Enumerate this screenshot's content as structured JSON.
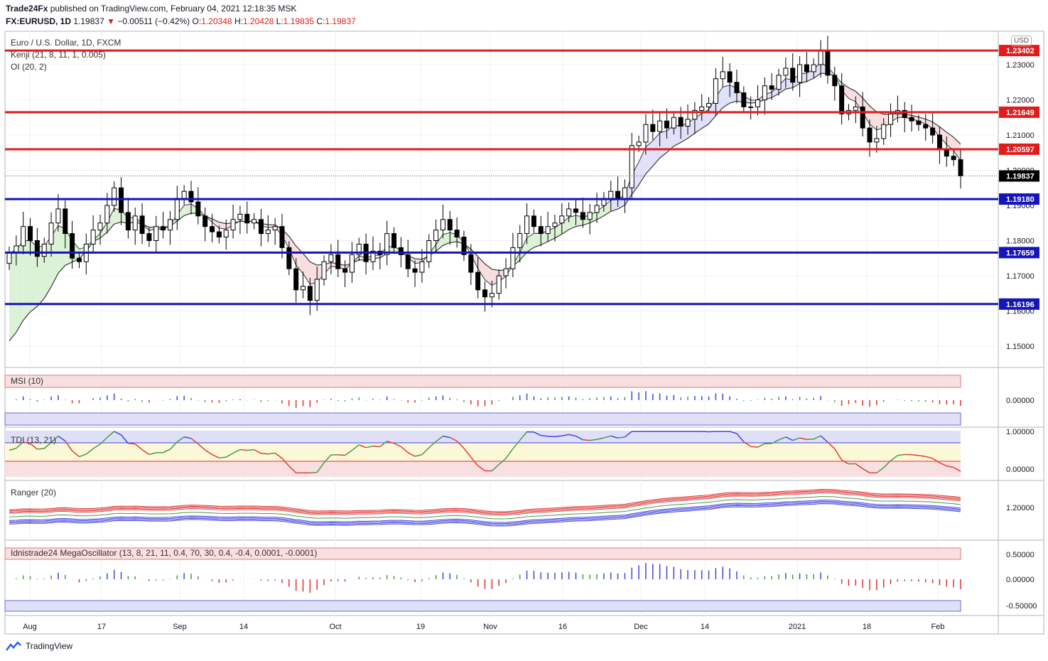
{
  "header": {
    "publisher": "Trade24Fx",
    "published_text": "published on TradingView.com, February 04, 2021 12:18:35 MSK",
    "symbol": "FX:EURUSD, 1D",
    "last": "1.19837",
    "change": "−0.00511 (−0.42%)",
    "o_label": "O:",
    "o": "1.20348",
    "h_label": "H:",
    "h": "1.20428",
    "l_label": "L:",
    "l": "1.19835",
    "c_label": "C:",
    "c": "1.19837"
  },
  "legend": {
    "title": "Euro / U.S. Dollar, 1D, FXCM",
    "kenji": "Kenji (21, 8, 11, 1, 0.005)",
    "oi": "OI (20, 2)"
  },
  "indicators": {
    "msi": "MSI (10)",
    "tdi": "TDI (13, 21)",
    "ranger": "Ranger (20)",
    "mega": "Idnistrade24 MegaOscillator (13, 8, 21, 11, 0.4, 70, 30, 0.4, -0.4, 0.0001, -0.0001)"
  },
  "currency": "USD",
  "footer": {
    "brand": "TradingView"
  },
  "colors": {
    "up": "#ffffff",
    "down": "#000000",
    "resistance": "#e31b1b",
    "support": "#1515b8",
    "accent_red": "#e31b1b",
    "accent_blue": "#2e2ef0"
  },
  "chart_data": [
    {
      "type": "candlestick",
      "title": "Euro / U.S. Dollar, 1D, FXCM",
      "ylim": [
        1.145,
        1.2375
      ],
      "price_ticks": [
        "1.23000",
        "1.22000",
        "1.21000",
        "1.20000",
        "1.19000",
        "1.18000",
        "1.17000",
        "1.16000",
        "1.15000"
      ],
      "x_ticks": [
        "Aug",
        "17",
        "Sep",
        "14",
        "Oct",
        "19",
        "Nov",
        "16",
        "Dec",
        "14",
        "2021",
        "18",
        "Feb"
      ],
      "levels": [
        {
          "value": 1.23402,
          "label": "1.23402",
          "kind": "resistance"
        },
        {
          "value": 1.21649,
          "label": "1.21649",
          "kind": "resistance"
        },
        {
          "value": 1.20597,
          "label": "1.20597",
          "kind": "resistance"
        },
        {
          "value": 1.19837,
          "label": "1.19837",
          "kind": "last"
        },
        {
          "value": 1.1918,
          "label": "1.19180",
          "kind": "support"
        },
        {
          "value": 1.17659,
          "label": "1.17659",
          "kind": "support"
        },
        {
          "value": 1.16196,
          "label": "1.16196",
          "kind": "support"
        }
      ],
      "close": [
        1.1765,
        1.1785,
        1.184,
        1.18,
        1.1755,
        1.179,
        1.185,
        1.189,
        1.182,
        1.175,
        1.174,
        1.179,
        1.183,
        1.185,
        1.19,
        1.195,
        1.188,
        1.183,
        1.187,
        1.182,
        1.18,
        1.184,
        1.183,
        1.186,
        1.192,
        1.194,
        1.191,
        1.187,
        1.184,
        1.1825,
        1.181,
        1.183,
        1.186,
        1.1875,
        1.185,
        1.186,
        1.182,
        1.183,
        1.184,
        1.178,
        1.172,
        1.166,
        1.167,
        1.163,
        1.169,
        1.174,
        1.176,
        1.172,
        1.171,
        1.176,
        1.179,
        1.174,
        1.177,
        1.176,
        1.182,
        1.178,
        1.176,
        1.172,
        1.171,
        1.174,
        1.18,
        1.183,
        1.186,
        1.183,
        1.181,
        1.176,
        1.171,
        1.166,
        1.164,
        1.165,
        1.17,
        1.172,
        1.178,
        1.182,
        1.187,
        1.184,
        1.182,
        1.184,
        1.185,
        1.187,
        1.189,
        1.188,
        1.186,
        1.188,
        1.19,
        1.192,
        1.194,
        1.192,
        1.195,
        1.207,
        1.208,
        1.213,
        1.211,
        1.214,
        1.212,
        1.215,
        1.2125,
        1.2145,
        1.217,
        1.218,
        1.219,
        1.226,
        1.228,
        1.225,
        1.222,
        1.218,
        1.218,
        1.22,
        1.224,
        1.223,
        1.227,
        1.229,
        1.225,
        1.23,
        1.228,
        1.23,
        1.234,
        1.227,
        1.224,
        1.216,
        1.217,
        1.218,
        1.212,
        1.208,
        1.209,
        1.213,
        1.216,
        1.217,
        1.215,
        1.214,
        1.213,
        1.212,
        1.21,
        1.206,
        1.204,
        1.203,
        1.1984
      ],
      "macd_markers_count": 0
    },
    {
      "type": "bar",
      "title": "MSI (10)",
      "ylim": [
        -0.35,
        0.35
      ],
      "y_ticks": [
        "0.00000"
      ]
    },
    {
      "type": "line",
      "title": "TDI (13, 21)",
      "ylim": [
        -0.2,
        1.2
      ],
      "y_ticks": [
        "1.00000",
        "0.00000"
      ]
    },
    {
      "type": "line",
      "title": "Ranger (20)",
      "y_ticks": [
        "1.20000"
      ]
    },
    {
      "type": "bar",
      "title": "Idnistrade24 MegaOscillator (13, 8, 21, 11, 0.4, 70, 30, 0.4, -0.4, 0.0001, -0.0001)",
      "ylim": [
        -0.7,
        0.7
      ],
      "y_ticks": [
        "0.50000",
        "0.00000",
        "-0.50000"
      ]
    }
  ]
}
